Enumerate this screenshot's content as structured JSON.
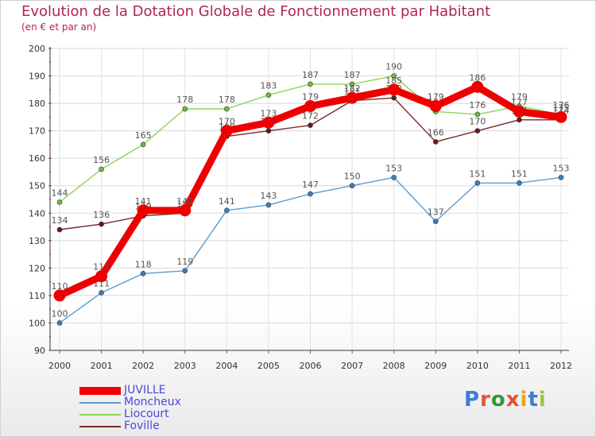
{
  "title": "Evolution de la Dotation Globale de Fonctionnement par Habitant",
  "subtitle": "(en € et par an)",
  "logo_parts": [
    "P",
    "r",
    "o",
    "x",
    "i",
    "t",
    "i"
  ],
  "logo_colors": [
    "#3a7fd4",
    "#e8522f",
    "#2d9a3e",
    "#e8522f",
    "#f0a020",
    "#3a7fd4",
    "#9bc53d"
  ],
  "chart_data": {
    "type": "line",
    "title": "Evolution de la Dotation Globale de Fonctionnement par Habitant",
    "subtitle": "(en € et par an)",
    "x": [
      "2000",
      "2001",
      "2002",
      "2003",
      "2004",
      "2005",
      "2006",
      "2007",
      "2008",
      "2009",
      "2010",
      "2011",
      "2012"
    ],
    "ylim": [
      90,
      200
    ],
    "yticks": [
      90,
      100,
      110,
      120,
      130,
      140,
      150,
      160,
      170,
      180,
      190,
      200
    ],
    "grid": true,
    "legend_position": "bottom-left",
    "series": [
      {
        "name": "Moncheux",
        "color": "#5b9bd0",
        "marker": "#3a7fc0",
        "values": [
          100,
          111,
          118,
          119,
          141,
          143,
          147,
          150,
          153,
          137,
          151,
          151,
          153
        ]
      },
      {
        "name": "Liocourt",
        "color": "#8fd35a",
        "marker": "#6cbf3a",
        "values": [
          144,
          156,
          165,
          178,
          178,
          183,
          187,
          187,
          190,
          177,
          176,
          179,
          176
        ]
      },
      {
        "name": "Foville",
        "color": "#7a2a2a",
        "marker": "#6a1a1a",
        "values": [
          134,
          136,
          139,
          140,
          168,
          170,
          172,
          181,
          182,
          166,
          170,
          174,
          174
        ]
      },
      {
        "name": "JUVILLE",
        "color": "#ee0000",
        "marker": "#ee0000",
        "values": [
          110,
          117,
          141,
          141,
          170,
          173,
          179,
          182,
          185,
          179,
          186,
          177,
          175
        ]
      }
    ],
    "legend": [
      "JUVILLE",
      "Moncheux",
      "Liocourt",
      "Foville"
    ]
  }
}
